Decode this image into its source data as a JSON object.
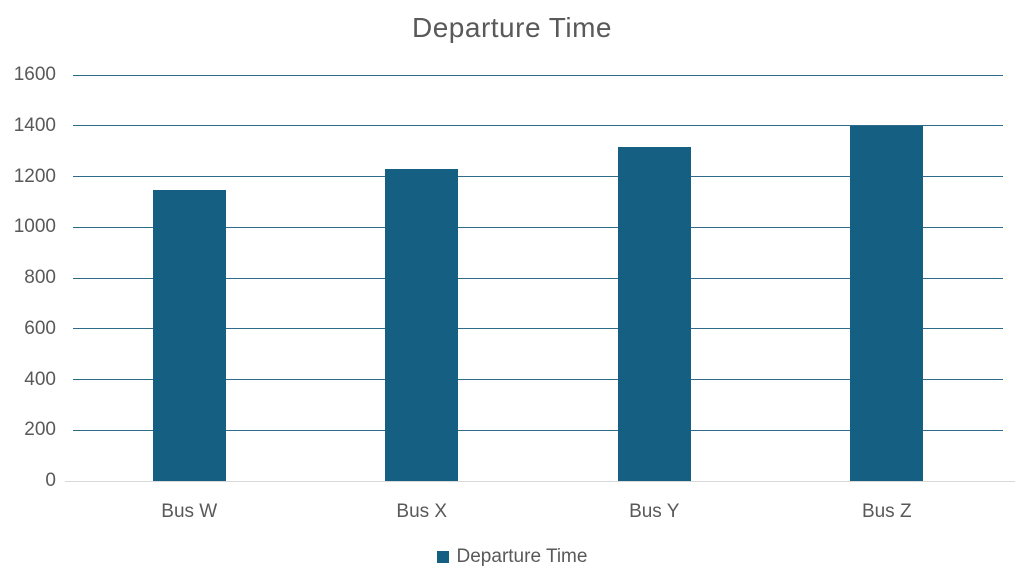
{
  "chart_data": {
    "type": "bar",
    "title": "Departure Time",
    "categories": [
      "Bus W",
      "Bus X",
      "Bus Y",
      "Bus Z"
    ],
    "series": [
      {
        "name": "Departure Time",
        "values": [
          1145,
          1230,
          1315,
          1400
        ]
      }
    ],
    "xlabel": "",
    "ylabel": "",
    "ylim": [
      0,
      1600
    ],
    "ytick_step": 200,
    "ytick_labels": [
      "0",
      "200",
      "400",
      "600",
      "800",
      "1000",
      "1200",
      "1400",
      "1600"
    ],
    "grid": true,
    "legend_position": "bottom",
    "colors": {
      "bar": "#156082",
      "gridline": "#2E6B88",
      "zero_line": "#D9D9D9",
      "text": "#595959",
      "background": "#FFFFFF"
    }
  }
}
